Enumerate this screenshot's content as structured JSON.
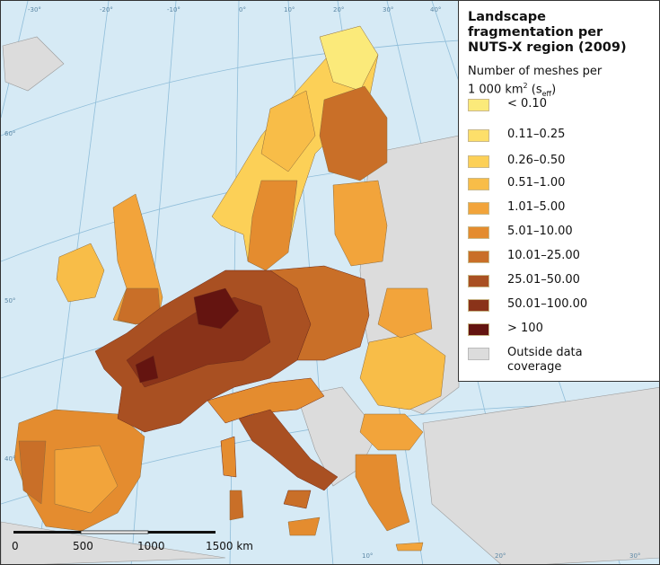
{
  "title": "Landscape fragmentation per NUTS-X region (2009)",
  "subtitle_line1": "Number of meshes per",
  "subtitle_line2_prefix": "1 000 km",
  "subtitle_line2_sup": "2",
  "subtitle_line2_open": " (s",
  "subtitle_line2_sub": "eff",
  "subtitle_line2_close": ")",
  "legend": [
    {
      "label": "< 0.10",
      "color": "#fbea7a"
    },
    {
      "label": "0.11–0.25",
      "color": "#fddf6a"
    },
    {
      "label": "0.26–0.50",
      "color": "#fcd057"
    },
    {
      "label": "0.51–1.00",
      "color": "#f8bd48"
    },
    {
      "label": "1.01–5.00",
      "color": "#f2a43b"
    },
    {
      "label": "5.01–10.00",
      "color": "#e48c2f"
    },
    {
      "label": "10.01–25.00",
      "color": "#c96f28"
    },
    {
      "label": "25.01–50.00",
      "color": "#a95022"
    },
    {
      "label": "50.01–100.00",
      "color": "#8a3319"
    },
    {
      "label": "> 100",
      "color": "#641410"
    },
    {
      "label": "Outside data coverage",
      "color": "#dcdcdc"
    }
  ],
  "scale_bar": {
    "labels": [
      "0",
      "500",
      "1000",
      "1500 km"
    ]
  },
  "graticule_labels": {
    "top": [
      "-30°",
      "-20°",
      "-10°",
      "0°",
      "10°",
      "20°",
      "30°",
      "40°"
    ],
    "left": [
      "60°",
      "50°",
      "40°"
    ],
    "bottom": [
      "10°",
      "20°",
      "30°"
    ]
  },
  "colors": {
    "sea": "#d6eaf5",
    "outside": "#dcdcdc",
    "border": "#7a7a7a"
  }
}
